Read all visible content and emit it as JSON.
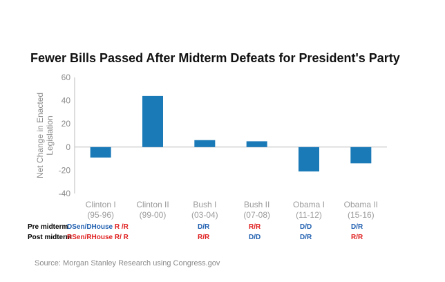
{
  "title": "Fewer Bills Passed After Midterm Defeats for President's Party",
  "source": "Source: Morgan Stanley Research using Congress.gov",
  "colors": {
    "bar": "#1a7ab8",
    "dem": "#1f5fb0",
    "rep": "#e02020",
    "axis": "#bbbbbb"
  },
  "chart_data": {
    "type": "bar",
    "title": "Fewer Bills Passed After Midterm Defeats for President's Party",
    "ylabel": "Net Change in Enacted Legislation",
    "xlabel": "",
    "ylim": [
      -40,
      60
    ],
    "yticks": [
      -40,
      -20,
      0,
      20,
      40,
      60
    ],
    "grid": false,
    "categories": [
      [
        "Clinton I",
        "(95-96)"
      ],
      [
        "Clinton II",
        "(99-00)"
      ],
      [
        "Bush I",
        "(03-04)"
      ],
      [
        "Bush II",
        "(07-08)"
      ],
      [
        "Obama I",
        "(11-12)"
      ],
      [
        "Obama II",
        "(15-16)"
      ]
    ],
    "values": [
      -9,
      44,
      6,
      5,
      -21,
      -14
    ]
  },
  "table": {
    "rows": [
      {
        "label": "Pre midterm",
        "cells": [
          [
            {
              "text": "DSen/DHouse",
              "party": "dem"
            },
            {
              "text": " R /R",
              "party": "rep"
            }
          ],
          [
            {
              "text": "D/R",
              "party": "dem"
            }
          ],
          [
            {
              "text": "R/R",
              "party": "rep"
            }
          ],
          [
            {
              "text": "D/D",
              "party": "dem"
            }
          ],
          [
            {
              "text": "D/R",
              "party": "dem"
            }
          ]
        ]
      },
      {
        "label": "Post midterm",
        "cells": [
          [
            {
              "text": "RSen/RHouse",
              "party": "rep"
            },
            {
              "text": " R/ R",
              "party": "rep"
            }
          ],
          [
            {
              "text": "R/R",
              "party": "rep"
            }
          ],
          [
            {
              "text": "D/D",
              "party": "dem"
            }
          ],
          [
            {
              "text": "D/R",
              "party": "dem"
            }
          ],
          [
            {
              "text": "R/R",
              "party": "rep"
            }
          ]
        ]
      }
    ]
  }
}
